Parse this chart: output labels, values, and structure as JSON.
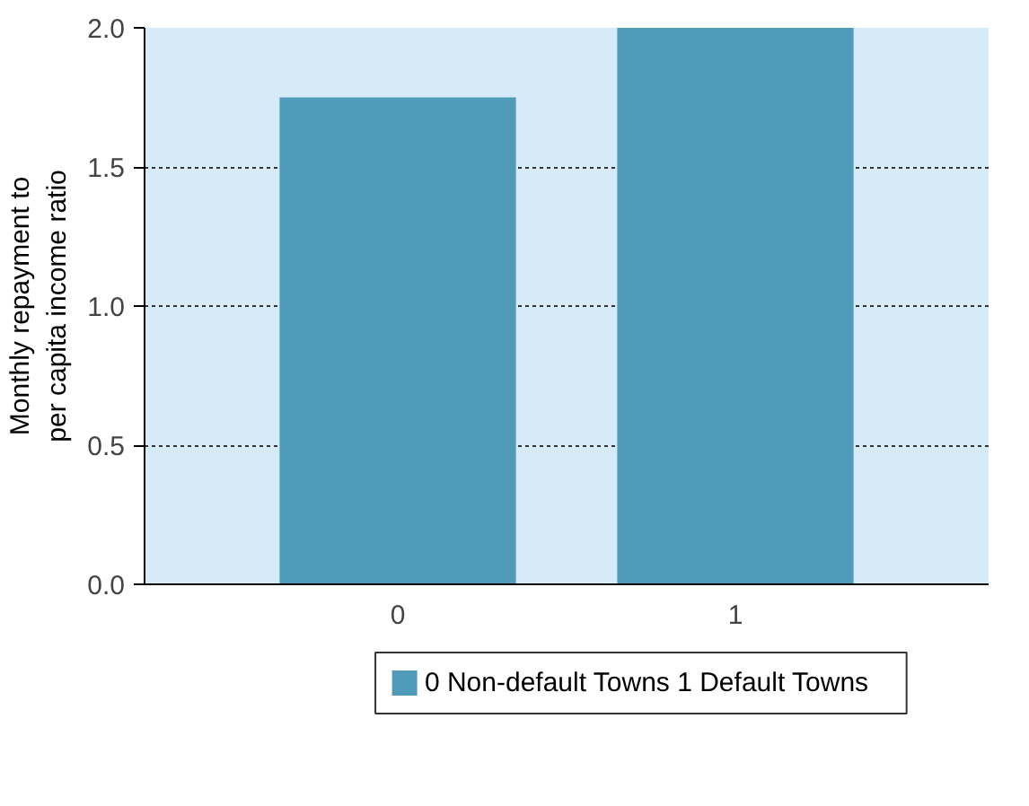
{
  "chart_data": {
    "type": "bar",
    "ylabel": "Monthly repayment to\nper capita income ratio",
    "categories": [
      "0",
      "1"
    ],
    "series": [
      {
        "name": "0 Non-default Towns  1 Default Towns",
        "color": "#509bb9",
        "values": [
          1.75,
          2.0
        ]
      }
    ],
    "ylim": [
      0,
      2.0
    ],
    "yticks": [
      {
        "value": 0,
        "label": "0.0"
      },
      {
        "value": 0.5,
        "label": "0.5"
      },
      {
        "value": 1.0,
        "label": "1.0"
      },
      {
        "value": 1.5,
        "label": "1.5"
      },
      {
        "value": 2.0,
        "label": "2.0"
      }
    ],
    "bands": [
      {
        "axis": "y",
        "from": 0,
        "to": 2.0,
        "color": "#d5ebf8"
      }
    ],
    "grid": "y",
    "legend": "bottom"
  }
}
